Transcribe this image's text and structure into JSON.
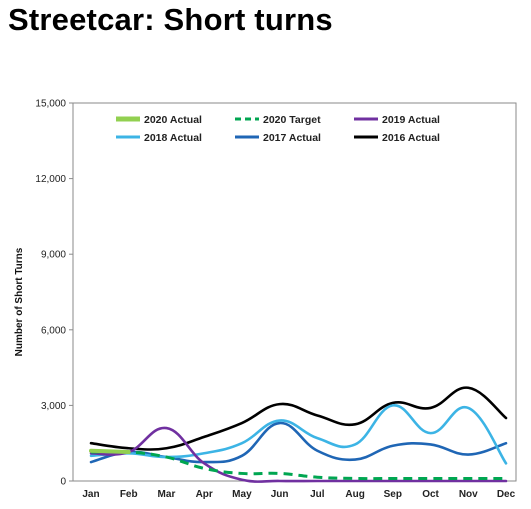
{
  "page": {
    "title": "Streetcar: Short turns"
  },
  "chart_data": {
    "type": "line",
    "title": "Streetcar: Short turns",
    "xlabel": "",
    "ylabel": "Number of Short Turns",
    "categories": [
      "Jan",
      "Feb",
      "Mar",
      "Apr",
      "May",
      "Jun",
      "Jul",
      "Aug",
      "Sep",
      "Oct",
      "Nov",
      "Dec"
    ],
    "yticks": [
      "0",
      "3,000",
      "6,000",
      "9,000",
      "12,000",
      "15,000"
    ],
    "ylim": [
      0,
      15000
    ],
    "grid": false,
    "legend_position": "top",
    "series": [
      {
        "name": "2020 Actual",
        "color": "#92d050",
        "dash": "solid",
        "values": [
          1200,
          1150,
          null,
          null,
          null,
          null,
          null,
          null,
          null,
          null,
          null,
          null
        ]
      },
      {
        "name": "2020 Target",
        "color": "#00a651",
        "dash": "dashed",
        "values": [
          1150,
          1150,
          950,
          500,
          300,
          300,
          150,
          100,
          100,
          100,
          100,
          100
        ]
      },
      {
        "name": "2019 Actual",
        "color": "#7030a0",
        "dash": "solid",
        "values": [
          1100,
          1150,
          2100,
          700,
          50,
          0,
          0,
          0,
          0,
          0,
          0,
          0
        ]
      },
      {
        "name": "2018 Actual",
        "color": "#3cb4e5",
        "dash": "solid",
        "values": [
          1000,
          1100,
          950,
          1100,
          1500,
          2400,
          1700,
          1450,
          3000,
          1900,
          2900,
          700
        ]
      },
      {
        "name": "2017 Actual",
        "color": "#1f66b5",
        "dash": "solid",
        "values": [
          750,
          1150,
          950,
          750,
          1000,
          2300,
          1200,
          850,
          1400,
          1450,
          1050,
          1500
        ]
      },
      {
        "name": "2016 Actual",
        "color": "#000000",
        "dash": "solid",
        "values": [
          1500,
          1300,
          1300,
          1750,
          2300,
          3050,
          2600,
          2250,
          3100,
          2900,
          3700,
          2500
        ]
      }
    ]
  }
}
